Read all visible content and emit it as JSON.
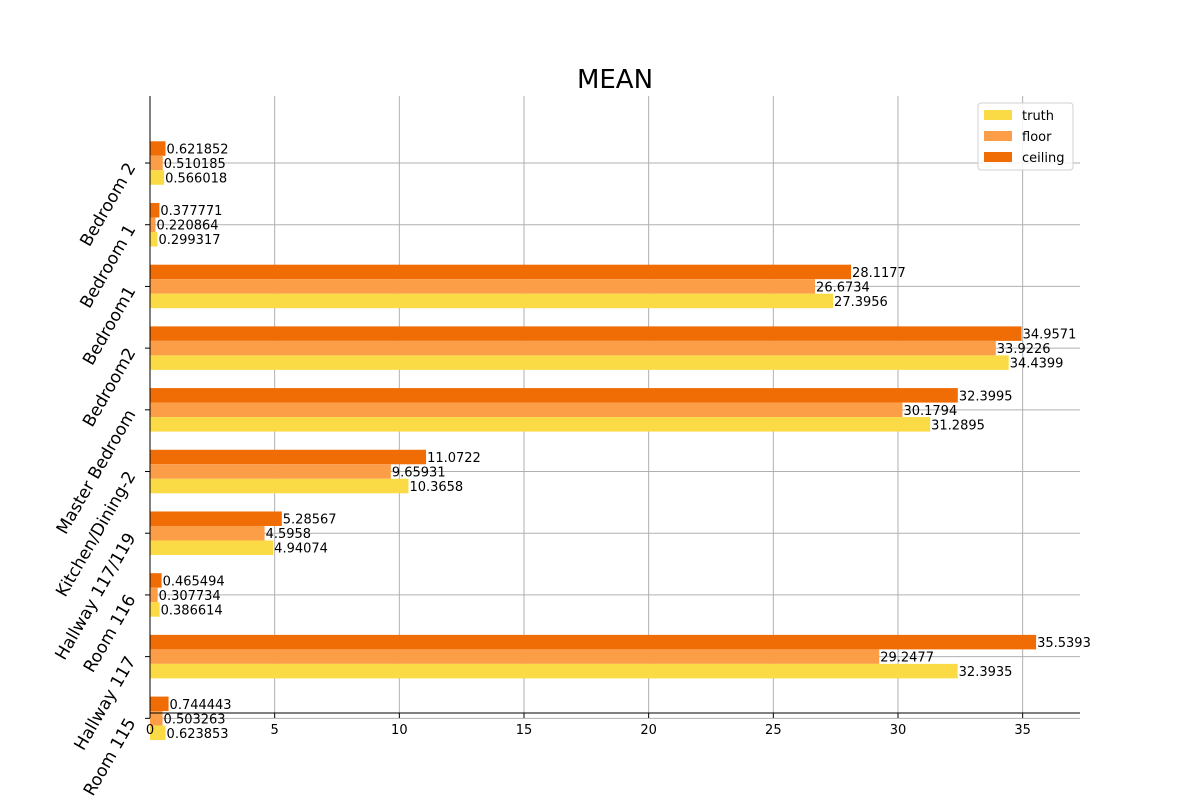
{
  "chart_data": {
    "type": "bar",
    "orientation": "horizontal",
    "title": "MEAN",
    "xlabel": "",
    "ylabel": "",
    "xlim": [
      0,
      37.3
    ],
    "xticks": [
      0,
      5,
      10,
      15,
      20,
      25,
      30,
      35
    ],
    "grid": true,
    "legend_position": "top-right",
    "categories": [
      "Bedroom 2",
      "Bedroom 1",
      "Bedroom1",
      "Bedroom2",
      "Master Bedroom",
      "Kitchen/Dining-2",
      "Hallway 117/119",
      "Room 116",
      "Hallway 117",
      "Room 115"
    ],
    "series": [
      {
        "name": "truth",
        "color": "#fadb46",
        "values": [
          0.566018,
          0.299317,
          27.3956,
          34.4399,
          31.2895,
          10.3658,
          4.94074,
          0.386614,
          32.3935,
          0.623853
        ],
        "labels": [
          "0.566018",
          "0.299317",
          "27.3956",
          "34.4399",
          "31.2895",
          "10.3658",
          "4.94074",
          "0.386614",
          "32.3935",
          "0.623853"
        ]
      },
      {
        "name": "floor",
        "color": "#fc9d48",
        "values": [
          0.510185,
          0.220864,
          26.6734,
          33.9226,
          30.1794,
          9.65931,
          4.5958,
          0.307734,
          29.2477,
          0.503263
        ],
        "labels": [
          "0.510185",
          "0.220864",
          "26.6734",
          "33.9226",
          "30.1794",
          "9.65931",
          "4.5958",
          "0.307734",
          "29.2477",
          "0.503263"
        ]
      },
      {
        "name": "ceiling",
        "color": "#f06d05",
        "values": [
          0.621852,
          0.377771,
          28.1177,
          34.9571,
          32.3995,
          11.0722,
          5.28567,
          0.465494,
          35.5393,
          0.744443
        ],
        "labels": [
          "0.621852",
          "0.377771",
          "28.1177",
          "34.9571",
          "32.3995",
          "11.0722",
          "5.28567",
          "0.465494",
          "35.5393",
          "0.744443"
        ]
      }
    ]
  }
}
